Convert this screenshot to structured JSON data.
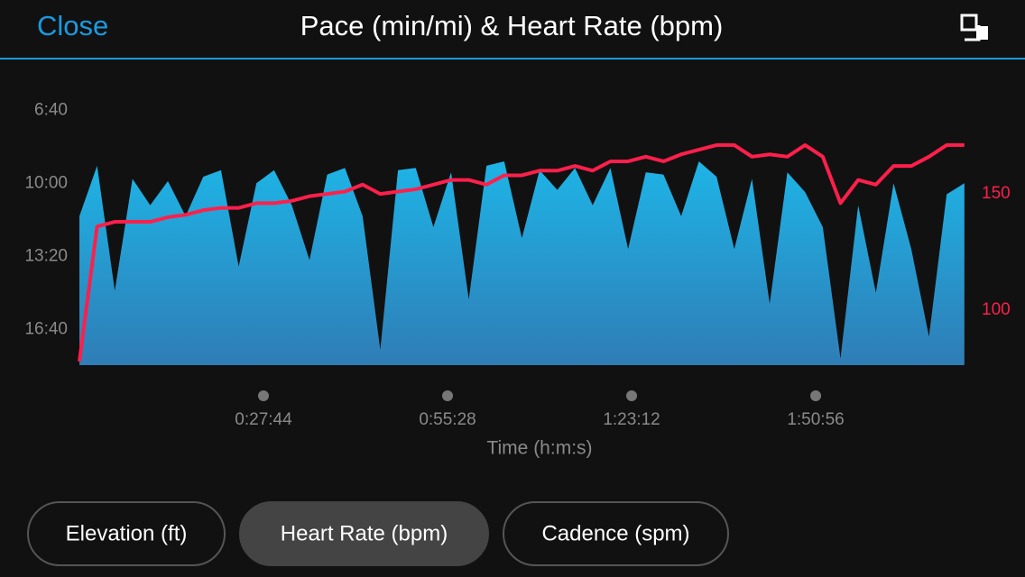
{
  "header": {
    "close": "Close"
  },
  "chart_data": {
    "type": "area",
    "title": "Pace (min/mi) & Heart Rate (bpm)",
    "xlabel": "Time (h:m:s)",
    "x": [
      0,
      160,
      320,
      480,
      640,
      800,
      960,
      1120,
      1280,
      1440,
      1600,
      1760,
      1920,
      2080,
      2240,
      2400,
      2560,
      2720,
      2880,
      3040,
      3200,
      3360,
      3520,
      3680,
      3840,
      4000,
      4160,
      4320,
      4480,
      4640,
      4800,
      4960,
      5120,
      5280,
      5440,
      5600,
      5760,
      5920,
      6080,
      6240,
      6400,
      6560,
      6720,
      6880,
      7040,
      7200,
      7360,
      7520,
      7680,
      7840,
      8000
    ],
    "xlim": [
      0,
      8026
    ],
    "xticks": [
      {
        "value": 1664,
        "label": "0:27:44"
      },
      {
        "value": 3328,
        "label": "0:55:28"
      },
      {
        "value": 4992,
        "label": "1:23:12"
      },
      {
        "value": 6656,
        "label": "1:50:56"
      }
    ],
    "ylim": [
      18.3,
      5.75
    ],
    "yticks": [
      {
        "value": 6.667,
        "label": "6:40"
      },
      {
        "value": 10,
        "label": "10:00"
      },
      {
        "value": 13.333,
        "label": "13:20"
      },
      {
        "value": 16.667,
        "label": "16:40"
      }
    ],
    "y2lim": [
      76.4,
      194.6
    ],
    "y2ticks": [
      100,
      150
    ],
    "y2color": "#ff1f4b",
    "grid": false,
    "series": [
      {
        "name": "Pace (min/mi)",
        "type": "area",
        "color": "#1eb4e6",
        "color2": "#2f7db6",
        "values": [
          11.5,
          9.2,
          14.9,
          9.8,
          11.0,
          9.9,
          11.5,
          9.7,
          9.4,
          13.8,
          10.0,
          9.4,
          11.0,
          13.5,
          9.6,
          9.3,
          11.5,
          17.6,
          9.4,
          9.3,
          12.0,
          9.5,
          15.3,
          9.2,
          9.0,
          12.5,
          9.4,
          10.3,
          9.3,
          11.0,
          9.3,
          13.0,
          9.5,
          9.6,
          11.5,
          9.0,
          9.7,
          13.0,
          9.8,
          15.5,
          9.5,
          10.4,
          12.0,
          18.0,
          11.0,
          15.0,
          10.0,
          13.0,
          17.0,
          10.5,
          10.0
        ]
      },
      {
        "name": "Heart Rate (bpm)",
        "type": "line",
        "axis": "y2",
        "color": "#ff1f4b",
        "values": [
          78,
          136,
          138,
          138,
          138,
          140,
          141,
          143,
          144,
          144,
          146,
          146,
          147,
          149,
          150,
          151,
          154,
          150,
          151,
          152,
          154,
          156,
          156,
          154,
          158,
          158,
          160,
          160,
          162,
          160,
          164,
          164,
          166,
          164,
          167,
          169,
          171,
          171,
          166,
          167,
          166,
          171,
          166,
          146,
          156,
          154,
          162,
          162,
          166,
          171,
          171
        ]
      }
    ]
  },
  "tabs": [
    {
      "label": "Elevation (ft)",
      "selected": false
    },
    {
      "label": "Heart Rate (bpm)",
      "selected": true
    },
    {
      "label": "Cadence (spm)",
      "selected": false
    }
  ]
}
